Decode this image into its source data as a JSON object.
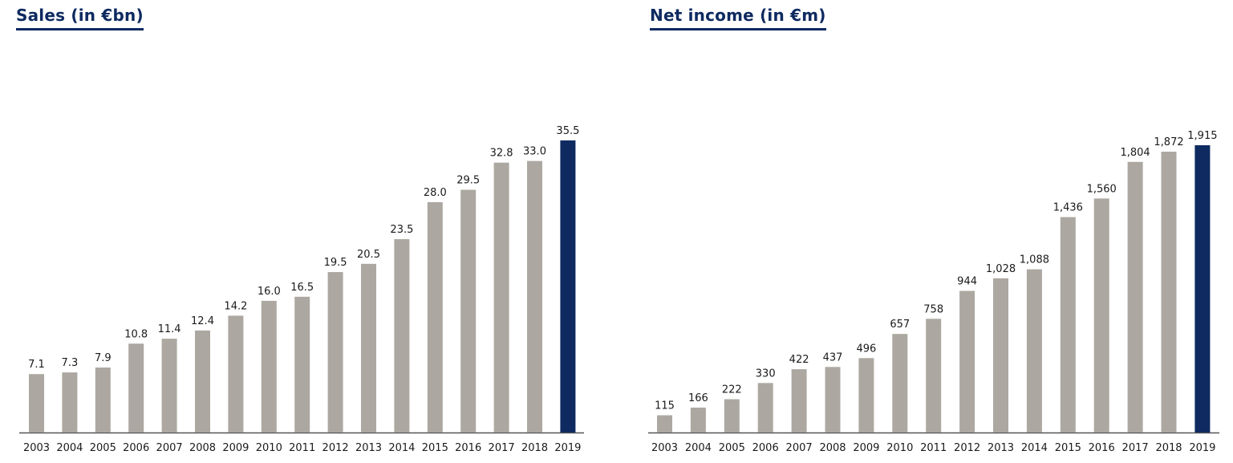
{
  "colors": {
    "bar": "#aca8a1",
    "highlight": "#0e2a60",
    "axis": "#555555",
    "title": "#0e2a60"
  },
  "chart_data": [
    {
      "type": "bar",
      "title": "Sales (in €bn)",
      "categories": [
        "2003",
        "2004",
        "2005",
        "2006",
        "2007",
        "2008",
        "2009",
        "2010",
        "2011",
        "2012",
        "2013",
        "2014",
        "2015",
        "2016",
        "2017",
        "2018",
        "2019"
      ],
      "values": [
        7.1,
        7.3,
        7.9,
        10.8,
        11.4,
        12.4,
        14.2,
        16.0,
        16.5,
        19.5,
        20.5,
        23.5,
        28.0,
        29.5,
        32.8,
        33.0,
        35.5
      ],
      "data_labels": [
        "7.1",
        "7.3",
        "7.9",
        "10.8",
        "11.4",
        "12.4",
        "14.2",
        "16.0",
        "16.5",
        "19.5",
        "20.5",
        "23.5",
        "28.0",
        "29.5",
        "32.8",
        "33.0",
        "35.5"
      ],
      "highlight_category": "2019",
      "ylim": [
        0,
        35.5
      ],
      "xlabel": "",
      "ylabel": "",
      "grid": false,
      "legend": false
    },
    {
      "type": "bar",
      "title": "Net income (in €m)",
      "categories": [
        "2003",
        "2004",
        "2005",
        "2006",
        "2007",
        "2008",
        "2009",
        "2010",
        "2011",
        "2012",
        "2013",
        "2014",
        "2015",
        "2016",
        "2017",
        "2018",
        "2019"
      ],
      "values": [
        115,
        166,
        222,
        330,
        422,
        437,
        496,
        657,
        758,
        944,
        1028,
        1088,
        1436,
        1560,
        1804,
        1872,
        1915
      ],
      "data_labels": [
        "115",
        "166",
        "222",
        "330",
        "422",
        "437",
        "496",
        "657",
        "758",
        "944",
        "1,028",
        "1,088",
        "1,436",
        "1,560",
        "1,804",
        "1,872",
        "1,915"
      ],
      "highlight_category": "2019",
      "ylim": [
        0,
        1915
      ],
      "xlabel": "",
      "ylabel": "",
      "grid": false,
      "legend": false
    }
  ]
}
